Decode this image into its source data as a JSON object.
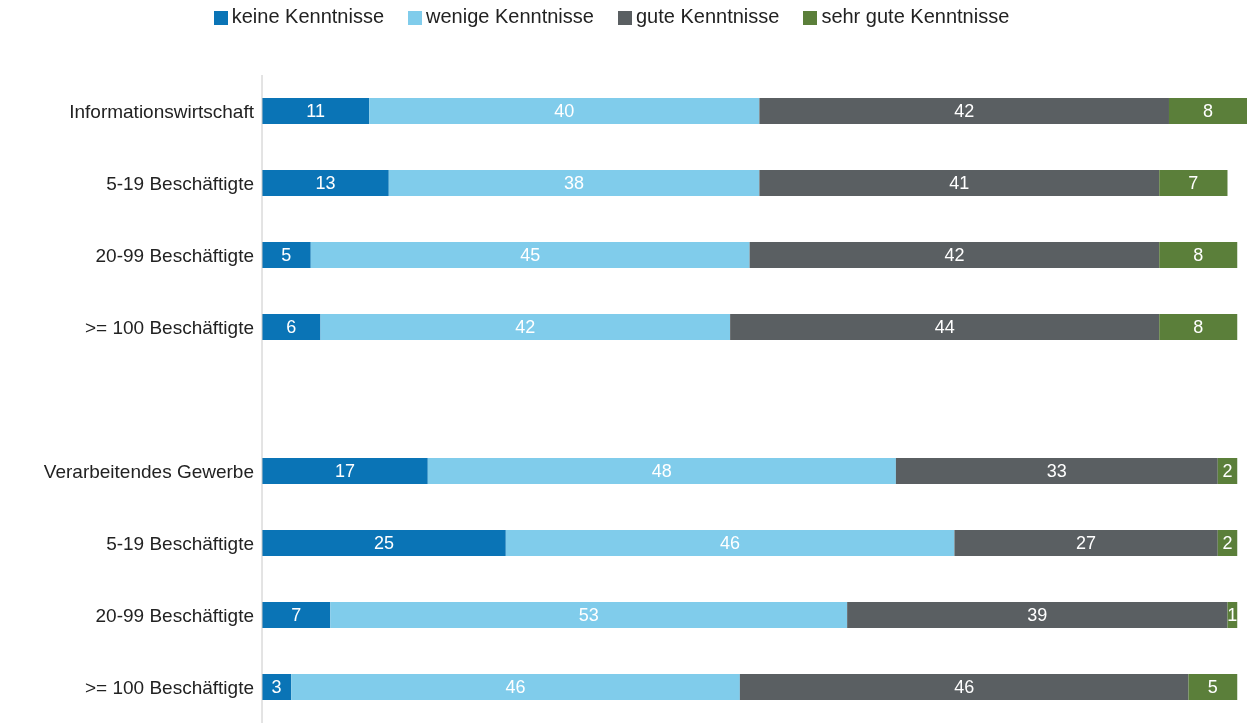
{
  "chart_data": {
    "type": "bar",
    "orientation": "horizontal",
    "stacked": true,
    "data_labels": true,
    "legend": "top",
    "grid": false,
    "tick_labels": "y",
    "categories": [
      "Informationswirtschaft",
      "5-19 Beschäftigte",
      "20-99 Beschäftigte",
      ">= 100 Beschäftigte",
      null,
      "Verarbeitendes Gewerbe",
      "5-19 Beschäftigte",
      "20-99 Beschäftigte",
      ">= 100 Beschäftigte"
    ],
    "xlim": [
      0,
      101
    ],
    "series": [
      {
        "name": "keine Kenntnisse",
        "color": "#0a74b6",
        "values": [
          11,
          13,
          5,
          6,
          null,
          17,
          25,
          7,
          3
        ]
      },
      {
        "name": "wenige Kenntnisse",
        "color": "#80cceb",
        "values": [
          40,
          38,
          45,
          42,
          null,
          48,
          46,
          53,
          46
        ]
      },
      {
        "name": "gute Kenntnisse",
        "color": "#5a5f62",
        "values": [
          42,
          41,
          42,
          44,
          null,
          33,
          27,
          39,
          46
        ]
      },
      {
        "name": "sehr gute Kenntnisse",
        "color": "#5b7f3a",
        "values": [
          8,
          7,
          8,
          8,
          null,
          2,
          2,
          1,
          5
        ]
      }
    ]
  }
}
